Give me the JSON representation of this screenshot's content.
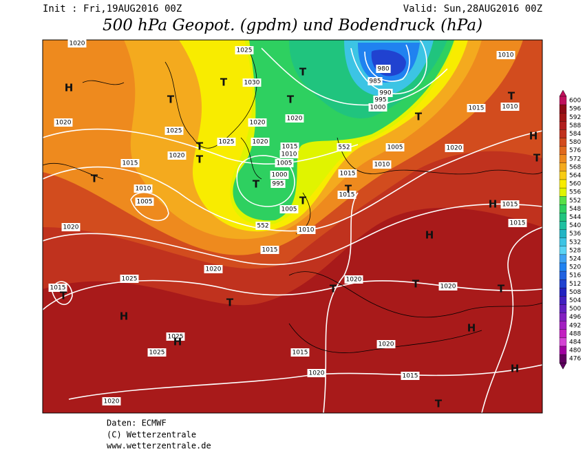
{
  "header": {
    "init": "Init : Fri,19AUG2016 00Z",
    "valid": "Valid: Sun,28AUG2016 00Z",
    "title": "500 hPa Geopot. (gpdm) und Bodendruck (hPa)"
  },
  "map": {
    "isobar_labels": [
      "1020",
      "1025",
      "1010",
      "1030",
      "980",
      "985",
      "990",
      "995",
      "1000",
      "1015",
      "1010",
      "1020",
      "1020",
      "1020",
      "1025",
      "1025",
      "1020",
      "1015",
      "552",
      "1005",
      "1020",
      "1020",
      "1010",
      "1015",
      "1005",
      "1010",
      "1000",
      "995",
      "1015",
      "1010",
      "1015",
      "1005",
      "1015",
      "1005",
      "552",
      "1010",
      "1015",
      "1020",
      "1015",
      "1020",
      "1025",
      "1015",
      "1020",
      "1020",
      "1025",
      "1020",
      "1025",
      "1015",
      "1020",
      "1015",
      "1020"
    ],
    "pressure_centers": [
      "H",
      "T",
      "T",
      "T",
      "T",
      "T",
      "T",
      "H",
      "T",
      "T",
      "T",
      "T",
      "T",
      "T",
      "T",
      "H",
      "T",
      "T",
      "T",
      "T",
      "H",
      "H",
      "H",
      "H",
      "T",
      "H",
      "T"
    ]
  },
  "colorbar": {
    "labels": [
      600,
      596,
      592,
      588,
      584,
      580,
      576,
      572,
      568,
      564,
      560,
      556,
      552,
      548,
      544,
      540,
      536,
      532,
      528,
      524,
      520,
      516,
      512,
      508,
      504,
      500,
      496,
      492,
      488,
      484,
      480,
      476
    ],
    "colors": [
      "#c0105c",
      "#8e0a14",
      "#a01414",
      "#b01e1e",
      "#c0321e",
      "#d24c1e",
      "#e06a1e",
      "#ee8a1e",
      "#f4aa1e",
      "#f8cc14",
      "#f8ec00",
      "#e0f400",
      "#58e048",
      "#2ed060",
      "#20c47e",
      "#20c0a0",
      "#22b4c4",
      "#3cc4e4",
      "#5ad4f4",
      "#3ea2f2",
      "#2082f0",
      "#2062e0",
      "#2042d0",
      "#2222c0",
      "#4220c0",
      "#6220c0",
      "#8220c0",
      "#a220c0",
      "#c220c0",
      "#d444d4",
      "#a000a0",
      "#600060"
    ]
  },
  "footer": [
    "Daten: ECMWF",
    "(C) Wetterzentrale",
    "www.wetterzentrale.de"
  ]
}
